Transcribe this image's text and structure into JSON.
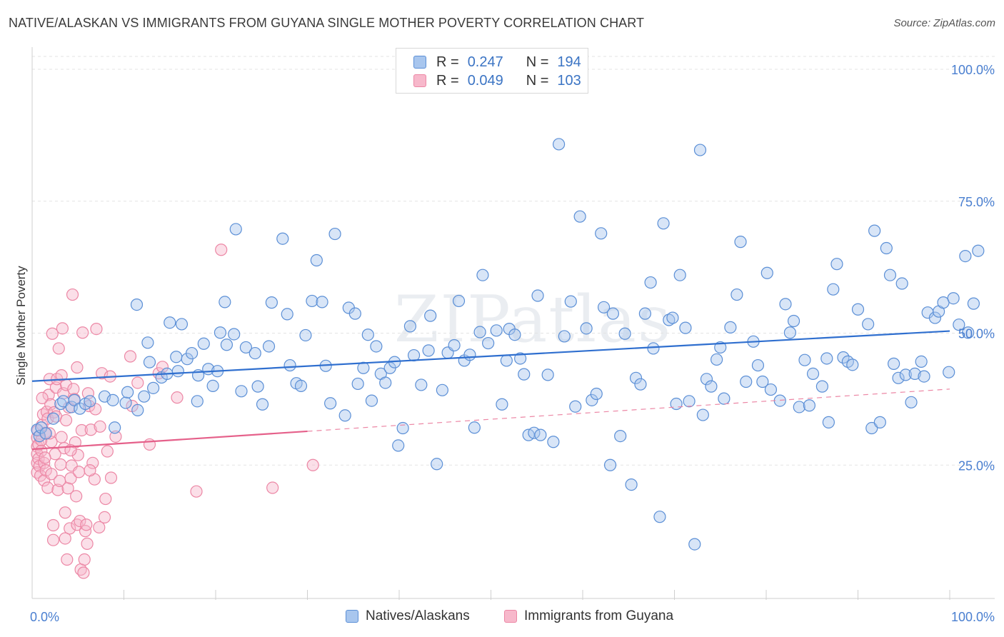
{
  "header": {
    "title": "NATIVE/ALASKAN VS IMMIGRANTS FROM GUYANA SINGLE MOTHER POVERTY CORRELATION CHART",
    "source": "Source: ZipAtlas.com"
  },
  "watermark": "ZIPatlas",
  "legend": {
    "rows": [
      {
        "r_label": "R =",
        "r_value": "0.247",
        "n_label": "N =",
        "n_value": "194"
      },
      {
        "r_label": "R =",
        "r_value": "0.049",
        "n_label": "N =",
        "n_value": "103"
      }
    ]
  },
  "bottom_legend": {
    "series1": "Natives/Alaskans",
    "series2": "Immigrants from Guyana"
  },
  "colors": {
    "blue_fill": "#a8c6ee",
    "blue_stroke": "#5b8fd6",
    "blue_line": "#2f6fcf",
    "pink_fill": "#f7b8cb",
    "pink_stroke": "#ec87a5",
    "pink_line": "#e5608a",
    "grid": "#e3e3e3",
    "axis_text": "#4a7fd0"
  },
  "chart_data": {
    "type": "scatter",
    "title": "NATIVE/ALASKAN VS IMMIGRANTS FROM GUYANA SINGLE MOTHER POVERTY CORRELATION CHART",
    "xlabel": "",
    "ylabel": "Single Mother Poverty",
    "xlim": [
      0,
      100
    ],
    "ylim": [
      0,
      105
    ],
    "x_tick_labels": [
      "0.0%",
      "100.0%"
    ],
    "y_tick_labels": [
      "25.0%",
      "50.0%",
      "75.0%",
      "100.0%"
    ],
    "y_tick_values": [
      25,
      50,
      75,
      100
    ],
    "grid": true,
    "legend_position": "top-center",
    "series": [
      {
        "name": "Natives/Alaskans",
        "r": 0.247,
        "n": 194,
        "trend": {
          "x": [
            0,
            100
          ],
          "y": [
            40.9,
            50.4
          ],
          "style": "solid"
        },
        "points": [
          [
            0.5,
            31.7
          ],
          [
            0.8,
            30.5
          ],
          [
            1.0,
            32.1
          ],
          [
            1.5,
            31.0
          ],
          [
            2.3,
            33.8
          ],
          [
            3.1,
            36.6
          ],
          [
            3.4,
            37.1
          ],
          [
            4.3,
            36.0
          ],
          [
            4.6,
            37.3
          ],
          [
            5.2,
            35.7
          ],
          [
            5.8,
            36.6
          ],
          [
            6.3,
            37.1
          ],
          [
            7.9,
            38.0
          ],
          [
            8.8,
            37.3
          ],
          [
            9.0,
            32.1
          ],
          [
            10.2,
            36.8
          ],
          [
            10.4,
            38.8
          ],
          [
            11.4,
            55.4
          ],
          [
            11.5,
            35.4
          ],
          [
            12.2,
            38.0
          ],
          [
            12.6,
            48.2
          ],
          [
            12.8,
            44.5
          ],
          [
            13.2,
            39.6
          ],
          [
            14.1,
            41.6
          ],
          [
            14.7,
            42.3
          ],
          [
            15.0,
            52.0
          ],
          [
            15.7,
            45.5
          ],
          [
            15.9,
            42.8
          ],
          [
            16.3,
            51.7
          ],
          [
            16.9,
            45.1
          ],
          [
            17.4,
            46.2
          ],
          [
            18.0,
            37.1
          ],
          [
            18.1,
            42.0
          ],
          [
            18.7,
            48.0
          ],
          [
            19.2,
            43.2
          ],
          [
            19.7,
            40.0
          ],
          [
            20.2,
            42.8
          ],
          [
            20.5,
            50.1
          ],
          [
            21.0,
            55.9
          ],
          [
            21.2,
            47.8
          ],
          [
            22.0,
            49.8
          ],
          [
            22.2,
            69.7
          ],
          [
            22.8,
            39.0
          ],
          [
            23.3,
            47.3
          ],
          [
            24.3,
            46.2
          ],
          [
            24.6,
            39.9
          ],
          [
            25.1,
            36.5
          ],
          [
            25.8,
            47.5
          ],
          [
            26.1,
            55.8
          ],
          [
            27.3,
            67.9
          ],
          [
            27.8,
            53.6
          ],
          [
            28.1,
            43.9
          ],
          [
            28.8,
            40.5
          ],
          [
            29.3,
            40.0
          ],
          [
            29.8,
            49.6
          ],
          [
            30.5,
            56.1
          ],
          [
            31.0,
            63.8
          ],
          [
            31.6,
            55.9
          ],
          [
            32.0,
            43.8
          ],
          [
            32.5,
            36.7
          ],
          [
            33.0,
            68.8
          ],
          [
            34.1,
            34.4
          ],
          [
            34.5,
            54.8
          ],
          [
            35.2,
            53.7
          ],
          [
            35.5,
            40.4
          ],
          [
            36.1,
            43.4
          ],
          [
            36.6,
            49.7
          ],
          [
            37.0,
            37.2
          ],
          [
            37.5,
            47.5
          ],
          [
            38.0,
            42.3
          ],
          [
            38.5,
            40.6
          ],
          [
            39.0,
            43.4
          ],
          [
            39.5,
            44.5
          ],
          [
            39.9,
            28.7
          ],
          [
            40.4,
            32.0
          ],
          [
            41.2,
            51.3
          ],
          [
            41.6,
            45.8
          ],
          [
            42.4,
            40.2
          ],
          [
            43.2,
            46.7
          ],
          [
            43.4,
            53.3
          ],
          [
            44.1,
            25.2
          ],
          [
            44.7,
            39.2
          ],
          [
            45.3,
            46.3
          ],
          [
            46.0,
            47.7
          ],
          [
            46.5,
            56.1
          ],
          [
            47.1,
            44.8
          ],
          [
            47.7,
            45.9
          ],
          [
            48.2,
            32.1
          ],
          [
            48.8,
            50.2
          ],
          [
            49.1,
            61.0
          ],
          [
            49.7,
            48.1
          ],
          [
            50.6,
            50.5
          ],
          [
            51.2,
            36.5
          ],
          [
            51.7,
            44.8
          ],
          [
            52.0,
            50.8
          ],
          [
            52.6,
            49.7
          ],
          [
            53.2,
            45.2
          ],
          [
            53.6,
            42.2
          ],
          [
            54.1,
            30.7
          ],
          [
            54.7,
            31.1
          ],
          [
            55.1,
            57.1
          ],
          [
            55.4,
            30.7
          ],
          [
            56.2,
            42.1
          ],
          [
            56.8,
            29.4
          ],
          [
            57.4,
            85.8
          ],
          [
            58.0,
            49.4
          ],
          [
            58.7,
            56.0
          ],
          [
            59.2,
            36.1
          ],
          [
            59.7,
            72.1
          ],
          [
            60.4,
            50.9
          ],
          [
            61.0,
            37.3
          ],
          [
            61.5,
            38.5
          ],
          [
            62.0,
            68.9
          ],
          [
            62.3,
            54.9
          ],
          [
            63.0,
            25.0
          ],
          [
            63.3,
            53.7
          ],
          [
            64.1,
            30.5
          ],
          [
            64.6,
            49.9
          ],
          [
            65.3,
            21.3
          ],
          [
            65.8,
            41.5
          ],
          [
            66.3,
            40.3
          ],
          [
            66.8,
            53.7
          ],
          [
            67.4,
            59.6
          ],
          [
            67.7,
            47.1
          ],
          [
            68.4,
            15.2
          ],
          [
            68.8,
            70.8
          ],
          [
            69.4,
            52.5
          ],
          [
            69.8,
            52.9
          ],
          [
            70.2,
            36.6
          ],
          [
            70.6,
            61.0
          ],
          [
            71.2,
            51.0
          ],
          [
            71.6,
            37.1
          ],
          [
            72.2,
            10.0
          ],
          [
            72.8,
            84.7
          ],
          [
            73.1,
            34.5
          ],
          [
            73.5,
            41.3
          ],
          [
            74.0,
            39.9
          ],
          [
            74.6,
            45.0
          ],
          [
            75.0,
            47.3
          ],
          [
            75.4,
            37.6
          ],
          [
            76.1,
            51.1
          ],
          [
            76.8,
            57.3
          ],
          [
            77.2,
            67.3
          ],
          [
            77.8,
            40.8
          ],
          [
            78.6,
            48.4
          ],
          [
            79.1,
            43.9
          ],
          [
            79.6,
            40.8
          ],
          [
            80.1,
            61.4
          ],
          [
            80.5,
            39.3
          ],
          [
            81.5,
            37.2
          ],
          [
            82.1,
            55.5
          ],
          [
            82.6,
            50.1
          ],
          [
            83.0,
            52.3
          ],
          [
            83.6,
            36.0
          ],
          [
            84.2,
            44.9
          ],
          [
            84.7,
            36.3
          ],
          [
            85.1,
            42.3
          ],
          [
            86.1,
            39.9
          ],
          [
            86.6,
            45.2
          ],
          [
            86.8,
            33.1
          ],
          [
            87.3,
            58.3
          ],
          [
            87.7,
            63.1
          ],
          [
            88.4,
            45.4
          ],
          [
            88.9,
            44.6
          ],
          [
            89.4,
            44.0
          ],
          [
            90.0,
            54.5
          ],
          [
            91.1,
            51.7
          ],
          [
            91.5,
            32.0
          ],
          [
            91.8,
            69.4
          ],
          [
            92.4,
            33.1
          ],
          [
            93.1,
            66.1
          ],
          [
            93.5,
            61.0
          ],
          [
            93.9,
            44.2
          ],
          [
            94.4,
            41.5
          ],
          [
            94.8,
            59.4
          ],
          [
            95.2,
            42.1
          ],
          [
            95.8,
            36.9
          ],
          [
            96.2,
            42.3
          ],
          [
            96.9,
            44.6
          ],
          [
            97.2,
            41.8
          ],
          [
            97.6,
            53.9
          ],
          [
            98.4,
            52.9
          ],
          [
            98.8,
            54.1
          ],
          [
            99.3,
            55.8
          ],
          [
            99.9,
            42.6
          ],
          [
            100.4,
            56.6
          ],
          [
            101.0,
            51.6
          ],
          [
            101.7,
            64.6
          ],
          [
            102.0,
            50.1
          ],
          [
            102.6,
            55.6
          ],
          [
            103.1,
            65.6
          ]
        ]
      },
      {
        "name": "Immigrants from Guyana",
        "r": 0.049,
        "n": 103,
        "trend": {
          "x": [
            0,
            30
          ],
          "y": [
            28.0,
            31.4
          ],
          "style": "solid",
          "extended": {
            "x": [
              30,
              100
            ],
            "y": [
              31.4,
              39.4
            ],
            "style": "dashed"
          }
        },
        "points": [
          [
            0.2,
            30.2
          ],
          [
            0.3,
            28.5
          ],
          [
            0.4,
            27.1
          ],
          [
            0.5,
            25.4
          ],
          [
            0.5,
            23.6
          ],
          [
            0.6,
            31.5
          ],
          [
            0.7,
            28.9
          ],
          [
            0.7,
            26.2
          ],
          [
            0.8,
            24.8
          ],
          [
            0.9,
            23.0
          ],
          [
            1.0,
            29.7
          ],
          [
            1.0,
            27.7
          ],
          [
            1.1,
            32.6
          ],
          [
            1.2,
            34.6
          ],
          [
            1.3,
            25.4
          ],
          [
            1.3,
            22.1
          ],
          [
            1.4,
            31.1
          ],
          [
            1.5,
            24.0
          ],
          [
            1.6,
            35.1
          ],
          [
            1.7,
            33.8
          ],
          [
            1.7,
            20.7
          ],
          [
            1.8,
            38.3
          ],
          [
            1.9,
            41.3
          ],
          [
            2.0,
            36.5
          ],
          [
            2.1,
            29.4
          ],
          [
            2.1,
            23.3
          ],
          [
            2.2,
            49.9
          ],
          [
            2.3,
            13.6
          ],
          [
            2.3,
            10.8
          ],
          [
            2.4,
            35.0
          ],
          [
            2.5,
            27.1
          ],
          [
            2.6,
            39.7
          ],
          [
            2.7,
            41.3
          ],
          [
            2.8,
            20.3
          ],
          [
            2.9,
            47.1
          ],
          [
            3.0,
            22.0
          ],
          [
            3.1,
            25.1
          ],
          [
            3.2,
            30.3
          ],
          [
            3.3,
            50.9
          ],
          [
            3.4,
            38.6
          ],
          [
            3.5,
            28.2
          ],
          [
            3.6,
            16.0
          ],
          [
            3.6,
            11.1
          ],
          [
            3.7,
            40.2
          ],
          [
            3.8,
            7.1
          ],
          [
            3.9,
            20.6
          ],
          [
            4.0,
            35.9
          ],
          [
            4.1,
            13.0
          ],
          [
            4.2,
            22.5
          ],
          [
            4.3,
            24.9
          ],
          [
            4.4,
            57.3
          ],
          [
            4.5,
            39.4
          ],
          [
            4.6,
            37.5
          ],
          [
            4.7,
            29.3
          ],
          [
            4.8,
            19.1
          ],
          [
            4.9,
            13.7
          ],
          [
            5.0,
            26.9
          ],
          [
            5.1,
            23.7
          ],
          [
            5.2,
            14.4
          ],
          [
            5.3,
            5.2
          ],
          [
            5.4,
            31.6
          ],
          [
            5.5,
            50.1
          ],
          [
            5.6,
            4.6
          ],
          [
            5.7,
            7.1
          ],
          [
            5.8,
            12.5
          ],
          [
            5.9,
            13.7
          ],
          [
            6.0,
            10.1
          ],
          [
            6.1,
            38.6
          ],
          [
            6.2,
            36.2
          ],
          [
            6.4,
            31.7
          ],
          [
            6.6,
            25.4
          ],
          [
            6.8,
            22.3
          ],
          [
            7.0,
            50.8
          ],
          [
            7.3,
            13.2
          ],
          [
            7.6,
            42.4
          ],
          [
            7.9,
            15.1
          ],
          [
            8.0,
            18.6
          ],
          [
            8.2,
            27.6
          ],
          [
            8.5,
            41.8
          ],
          [
            10.7,
            45.6
          ],
          [
            10.9,
            36.2
          ],
          [
            13.8,
            42.4
          ],
          [
            14.2,
            43.6
          ],
          [
            15.8,
            37.8
          ],
          [
            17.9,
            20.0
          ],
          [
            20.6,
            65.8
          ],
          [
            26.2,
            20.7
          ],
          [
            30.6,
            25.0
          ],
          [
            1.1,
            37.7
          ],
          [
            1.4,
            26.4
          ],
          [
            1.9,
            31.0
          ],
          [
            2.6,
            34.2
          ],
          [
            3.2,
            42.0
          ],
          [
            3.7,
            33.5
          ],
          [
            4.2,
            27.8
          ],
          [
            4.9,
            43.5
          ],
          [
            6.3,
            24.0
          ],
          [
            6.9,
            35.6
          ],
          [
            7.4,
            32.3
          ],
          [
            8.6,
            22.6
          ],
          [
            9.1,
            30.4
          ],
          [
            11.5,
            40.6
          ],
          [
            12.8,
            28.9
          ]
        ]
      }
    ]
  }
}
